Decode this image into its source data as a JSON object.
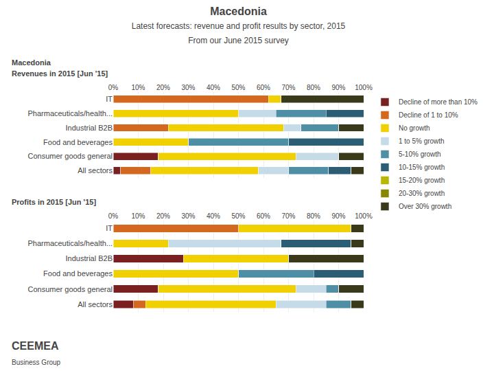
{
  "title": "Macedonia",
  "subtitle": [
    "Latest forecasts: revenue and profit results by sector, 2015",
    "From our June 2015 survey"
  ],
  "annotations": [
    "Macedonia",
    "CEEMEA",
    "Business Group"
  ],
  "chart_data": [
    {
      "type": "bar",
      "title": "Revenues in 2015 [Jun '15]",
      "orientation": "horizontal",
      "stacked": true,
      "grid": true,
      "legend": "top right",
      "categories": [
        "All sectors",
        "Consumer goods general",
        "Food and beverages",
        "Industrial B2B",
        "Pharmaceuticals/health...",
        "IT"
      ],
      "series": [
        {
          "name": "Decline of more than 10%",
          "color": "#7b2020",
          "values": [
            3,
            18,
            0,
            0,
            0,
            0
          ]
        },
        {
          "name": "Decline of 1 to 10%",
          "color": "#d4681e",
          "values": [
            12,
            0,
            0,
            22,
            0,
            62
          ]
        },
        {
          "name": "No growth",
          "color": "#f0d000",
          "values": [
            43,
            55,
            30,
            46,
            50,
            5
          ]
        },
        {
          "name": "1 to 5% growth",
          "color": "#c5dce8",
          "values": [
            12,
            17,
            0,
            7,
            15,
            0
          ]
        },
        {
          "name": "5-10% growth",
          "color": "#4e8fa5",
          "values": [
            16,
            0,
            40,
            15,
            20,
            0
          ]
        },
        {
          "name": "10-15% growth",
          "color": "#2b5d75",
          "values": [
            9,
            0,
            30,
            0,
            15,
            0
          ]
        },
        {
          "name": "15-20% growth",
          "color": "#b8b800",
          "values": [
            0,
            0,
            0,
            0,
            0,
            0
          ]
        },
        {
          "name": "20-30% growth",
          "color": "#888800",
          "values": [
            0,
            0,
            0,
            0,
            0,
            0
          ]
        },
        {
          "name": "Over 30% growth",
          "color": "#3a3a1a",
          "values": [
            5,
            10,
            0,
            10,
            0,
            33
          ]
        }
      ],
      "xlim": [
        0,
        100
      ],
      "xticks": [
        {
          "value": 0,
          "label": "0%"
        },
        {
          "value": 10,
          "label": "10%"
        },
        {
          "value": 20,
          "label": "20%"
        },
        {
          "value": 30,
          "label": "30%"
        },
        {
          "value": 40,
          "label": "40%"
        },
        {
          "value": 50,
          "label": "50%"
        },
        {
          "value": 60,
          "label": "60%"
        },
        {
          "value": 70,
          "label": "70%"
        },
        {
          "value": 80,
          "label": "80%"
        },
        {
          "value": 90,
          "label": "90%"
        },
        {
          "value": 100,
          "label": "100%"
        }
      ]
    },
    {
      "type": "bar",
      "title": "Profits in 2015 [Jun '15]",
      "orientation": "horizontal",
      "stacked": true,
      "grid": true,
      "categories": [
        "All sectors",
        "Consumer goods general",
        "Food and beverages",
        "Industrial B2B",
        "Pharmaceuticals/health...",
        "IT"
      ],
      "series": [
        {
          "name": "Decline of more than 10%",
          "color": "#7b2020",
          "values": [
            8,
            18,
            0,
            28,
            0,
            0
          ]
        },
        {
          "name": "Decline of 1 to 10%",
          "color": "#d4681e",
          "values": [
            5,
            0,
            0,
            0,
            0,
            50
          ]
        },
        {
          "name": "No growth",
          "color": "#f0d000",
          "values": [
            52,
            55,
            50,
            42,
            22,
            45
          ]
        },
        {
          "name": "1 to 5% growth",
          "color": "#c5dce8",
          "values": [
            20,
            12,
            0,
            0,
            45,
            0
          ]
        },
        {
          "name": "5-10% growth",
          "color": "#4e8fa5",
          "values": [
            10,
            5,
            30,
            0,
            0,
            0
          ]
        },
        {
          "name": "10-15% growth",
          "color": "#2b5d75",
          "values": [
            0,
            0,
            20,
            0,
            28,
            0
          ]
        },
        {
          "name": "15-20% growth",
          "color": "#b8b800",
          "values": [
            0,
            0,
            0,
            0,
            0,
            0
          ]
        },
        {
          "name": "20-30% growth",
          "color": "#888800",
          "values": [
            0,
            0,
            0,
            0,
            0,
            0
          ]
        },
        {
          "name": "Over 30% growth",
          "color": "#3a3a1a",
          "values": [
            5,
            10,
            0,
            30,
            5,
            5
          ]
        }
      ],
      "xlim": [
        0,
        100
      ],
      "xticks": [
        {
          "value": 0,
          "label": "0%"
        },
        {
          "value": 10,
          "label": "10%"
        },
        {
          "value": 20,
          "label": "20%"
        },
        {
          "value": 30,
          "label": "30%"
        },
        {
          "value": 40,
          "label": "40%"
        },
        {
          "value": 50,
          "label": "50%"
        },
        {
          "value": 60,
          "label": "60%"
        },
        {
          "value": 70,
          "label": "70%"
        },
        {
          "value": 80,
          "label": "80%"
        },
        {
          "value": 90,
          "label": "90%"
        },
        {
          "value": 100,
          "label": "100%"
        }
      ]
    }
  ]
}
